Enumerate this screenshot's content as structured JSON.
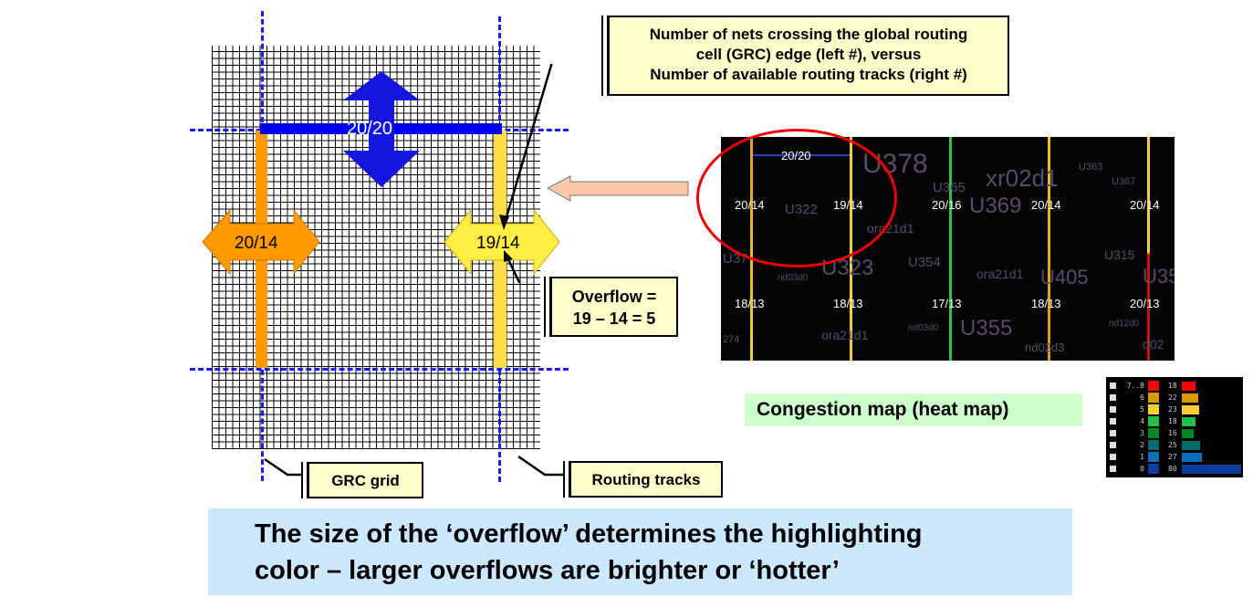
{
  "grid": {
    "top_label": "20/20",
    "left_label": "20/14",
    "right_label": "19/14"
  },
  "callouts": {
    "nets": [
      "Number of nets crossing the global routing",
      "cell (GRC) edge (left #), versus",
      "Number of available routing tracks (right #)"
    ],
    "overflow": [
      "Overflow =",
      "19 – 14 = 5"
    ],
    "grc_grid": "GRC grid",
    "routing_tracks": "Routing tracks"
  },
  "congestion_map": {
    "caption": "Congestion map (heat map)",
    "top_edge": "20/20",
    "row1": [
      "20/14",
      "19/14",
      "20/16",
      "20/14",
      "20/14"
    ],
    "row2": [
      "18/13",
      "18/13",
      "17/13",
      "18/13",
      "20/13"
    ],
    "cells": [
      "U378",
      "xr02d1",
      "U365",
      "U322",
      "U369",
      "U363",
      "U367",
      "ora21d1",
      "U37",
      "U323",
      "U354",
      "ora21d1",
      "U405",
      "U315",
      "U35",
      "nd03d0",
      "U355",
      "nd12d0",
      "ora21d1",
      "nd03d0",
      "nd02d3",
      "d02",
      "274"
    ]
  },
  "legend": [
    {
      "level": "7..8",
      "color": "#ff0000",
      "count": "18",
      "value": 18
    },
    {
      "level": "6",
      "color": "#dd9900",
      "count": "22",
      "value": 22
    },
    {
      "level": "5",
      "color": "#ffcc33",
      "count": "23",
      "value": 23
    },
    {
      "level": "4",
      "color": "#22c04a",
      "count": "18",
      "value": 18
    },
    {
      "level": "3",
      "color": "#008822",
      "count": "16",
      "value": 16
    },
    {
      "level": "2",
      "color": "#006a6a",
      "count": "25",
      "value": 25
    },
    {
      "level": "1",
      "color": "#0a6fb8",
      "count": "27",
      "value": 27
    },
    {
      "level": "0",
      "color": "#0a3fa0",
      "count": "80",
      "value": 80
    }
  ],
  "footer": [
    "The size of the ‘overflow’ determines the highlighting",
    "color – larger overflows are brighter or ‘hotter’"
  ]
}
